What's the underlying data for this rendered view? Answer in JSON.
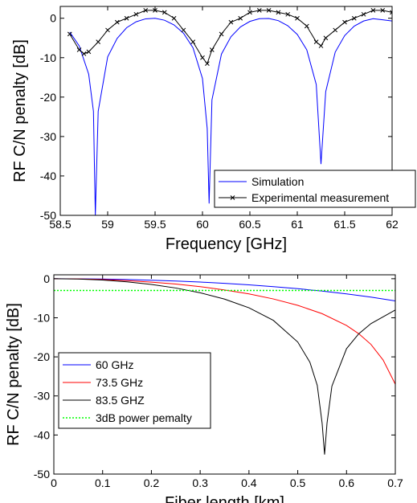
{
  "chart_data": [
    {
      "type": "line",
      "xlabel": "Frequency [GHz]",
      "ylabel": "RF C/N penalty [dB]",
      "xlim": [
        58.5,
        62
      ],
      "ylim": [
        -50,
        3
      ],
      "xticks": [
        58.5,
        59,
        59.5,
        60,
        60.5,
        61,
        61.5,
        62
      ],
      "yticks": [
        -50,
        -40,
        -30,
        -20,
        -10,
        0
      ],
      "legend": "lower right",
      "series": [
        {
          "name": "Simulation",
          "color": "#0000ff",
          "marker": "none",
          "x": [
            58.6,
            58.7,
            58.8,
            58.85,
            58.87,
            58.9,
            59.0,
            59.1,
            59.2,
            59.3,
            59.4,
            59.5,
            59.6,
            59.7,
            59.8,
            59.9,
            60.0,
            60.05,
            60.07,
            60.1,
            60.2,
            60.3,
            60.4,
            60.5,
            60.6,
            60.7,
            60.8,
            60.9,
            61.0,
            61.1,
            61.2,
            61.25,
            61.3,
            61.4,
            61.5,
            61.6,
            61.7,
            61.8,
            61.9,
            62.0
          ],
          "values": [
            -3.5,
            -7.0,
            -14.2,
            -23.6,
            -50,
            -23.6,
            -9.8,
            -5.1,
            -2.4,
            -0.9,
            -0.15,
            0,
            -0.5,
            -1.7,
            -3.8,
            -7.5,
            -15.3,
            -28,
            -47,
            -20.7,
            -9.1,
            -4.7,
            -2.2,
            -0.8,
            -0.1,
            -0.05,
            -0.6,
            -1.9,
            -4.1,
            -8.0,
            -16.8,
            -37,
            -18.6,
            -8.6,
            -4.4,
            -2.0,
            -0.7,
            -0.1,
            -0.4,
            -0.7
          ]
        },
        {
          "name": "Experimental measurement",
          "color": "#000000",
          "marker": "x",
          "x": [
            58.6,
            58.7,
            58.75,
            58.8,
            58.9,
            59.0,
            59.1,
            59.2,
            59.3,
            59.4,
            59.5,
            59.6,
            59.7,
            59.8,
            59.9,
            60.0,
            60.05,
            60.1,
            60.2,
            60.3,
            60.4,
            60.5,
            60.6,
            60.7,
            60.8,
            60.9,
            61.0,
            61.1,
            61.2,
            61.25,
            61.3,
            61.4,
            61.5,
            61.6,
            61.7,
            61.8,
            61.9,
            62.0
          ],
          "values": [
            -4,
            -8,
            -9,
            -8.5,
            -6,
            -3,
            -1,
            0,
            1,
            2,
            2,
            1.5,
            0,
            -3,
            -6,
            -10,
            -11.5,
            -8,
            -4,
            -1,
            0,
            1.5,
            2,
            2,
            1.5,
            1,
            0,
            -2,
            -6,
            -7,
            -5,
            -3,
            -1,
            0,
            1,
            2,
            2,
            1.5
          ]
        }
      ]
    },
    {
      "type": "line",
      "xlabel": "Fiber length [km]",
      "ylabel": "RF C/N penalty [dB]",
      "xlim": [
        0,
        0.7
      ],
      "ylim": [
        -50,
        1
      ],
      "xticks": [
        0,
        0.1,
        0.2,
        0.3,
        0.4,
        0.5,
        0.6,
        0.7
      ],
      "yticks": [
        -50,
        -40,
        -30,
        -20,
        -10,
        0
      ],
      "legend": "lower left",
      "series": [
        {
          "name": "60 GHz",
          "color": "#0000ff",
          "dash": "none",
          "x": [
            0,
            0.05,
            0.1,
            0.15,
            0.2,
            0.25,
            0.3,
            0.35,
            0.4,
            0.45,
            0.5,
            0.55,
            0.6,
            0.65,
            0.7
          ],
          "values": [
            0,
            -0.02,
            -0.09,
            -0.21,
            -0.38,
            -0.59,
            -0.86,
            -1.19,
            -1.58,
            -2.03,
            -2.56,
            -3.17,
            -3.88,
            -4.7,
            -5.68
          ]
        },
        {
          "name": "73.5 GHz",
          "color": "#ff0000",
          "dash": "none",
          "x": [
            0,
            0.05,
            0.1,
            0.15,
            0.2,
            0.25,
            0.3,
            0.35,
            0.4,
            0.45,
            0.5,
            0.55,
            0.6,
            0.625,
            0.65,
            0.675,
            0.7
          ],
          "values": [
            0,
            -0.05,
            -0.21,
            -0.48,
            -0.87,
            -1.37,
            -2.03,
            -2.87,
            -3.88,
            -5.18,
            -6.81,
            -8.95,
            -11.97,
            -14.07,
            -16.8,
            -20.8,
            -27
          ]
        },
        {
          "name": "83.5 GHZ",
          "color": "#000000",
          "dash": "none",
          "x": [
            0,
            0.05,
            0.1,
            0.15,
            0.2,
            0.25,
            0.3,
            0.35,
            0.4,
            0.45,
            0.5,
            0.525,
            0.54,
            0.55,
            0.555,
            0.56,
            0.57,
            0.6,
            0.625,
            0.65,
            0.7
          ],
          "values": [
            0,
            -0.09,
            -0.35,
            -0.81,
            -1.47,
            -2.38,
            -3.6,
            -5.22,
            -7.45,
            -10.66,
            -16.2,
            -21.4,
            -27.3,
            -37,
            -45,
            -37,
            -27.5,
            -17.9,
            -14.1,
            -11.5,
            -8.0
          ]
        },
        {
          "name": "3dB power pemalty",
          "color": "#00ff00",
          "dash": "dotted",
          "x": [
            0,
            0.7
          ],
          "values": [
            -3,
            -3
          ]
        }
      ]
    }
  ]
}
